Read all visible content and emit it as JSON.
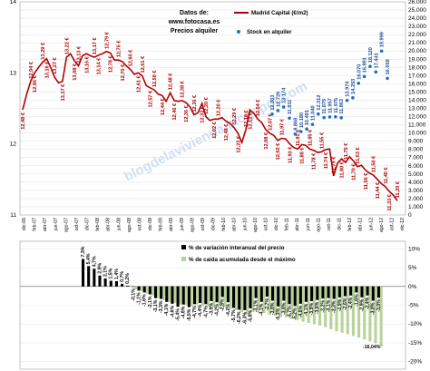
{
  "top_source": {
    "l1": "Datos de:",
    "l2": "www.fotocasa.es",
    "l3": "Precios alquiler"
  },
  "chart_data": [
    {
      "type": "line",
      "legend": [
        {
          "name": "Madrid Capital (€/m2)",
          "color": "#b00000"
        },
        {
          "name": "Stock en alquiler",
          "color": "#1f6fbf"
        }
      ],
      "categories": [
        "dic-06",
        "feb-07",
        "abr-07",
        "jun-07",
        "ago-07",
        "oct-07",
        "dic-07",
        "feb-08",
        "abr-08",
        "jun-08",
        "ago-08",
        "oct-08",
        "dic-08",
        "feb-09",
        "abr-09",
        "jun-09",
        "ago-09",
        "oct-09",
        "dic-09",
        "feb-10",
        "abr-10",
        "jun-10",
        "ago-10",
        "oct-10",
        "dic-10",
        "feb-11",
        "abr-11",
        "jun-11",
        "ago-11",
        "oct-11",
        "dic-11",
        "feb-12",
        "abr-12",
        "jun-12",
        "ago-12",
        "oct-12",
        "dic-12"
      ],
      "y_left": {
        "ticks": [
          "14",
          "13",
          "12",
          "11"
        ]
      },
      "y_right": {
        "ticks": [
          "26.000",
          "25.000",
          "24.000",
          "23.000",
          "22.000",
          "21.000",
          "20.000",
          "19.000",
          "18.000",
          "17.000",
          "16.000",
          "15.000",
          "14.000",
          "13.000",
          "12.000",
          "11.000",
          "10.000",
          "9.000",
          "8.000",
          "7.000",
          "6.000",
          "5.000",
          "4.000",
          "3.000",
          "2.000",
          "1.000",
          "0"
        ]
      },
      "price_values": [
        12.48,
        12.7,
        12.88,
        13.0,
        13.08,
        13.15,
        13.2,
        13.08,
        12.94,
        12.86,
        12.88,
        13.22,
        13.27,
        13.17,
        13.1,
        13.24,
        13.27,
        13.24,
        13.22,
        13.25,
        13.27,
        13.3,
        13.28,
        13.18,
        13.18,
        13.16,
        13.1,
        13.05,
        12.98,
        13.0,
        12.96,
        12.82,
        12.79,
        12.76,
        12.7,
        12.68,
        12.6,
        12.72,
        12.61,
        12.6,
        12.61,
        12.58,
        12.52,
        12.41,
        12.44,
        12.57,
        12.38,
        12.33,
        12.35,
        12.35,
        12.37,
        12.32,
        12.29,
        12.23,
        12.15,
        12.02,
        12.2,
        12.48,
        12.43,
        12.35,
        12.3,
        12.2,
        12.15,
        12.12,
        12.05,
        12.08,
        12.07,
        12.0,
        11.95,
        11.93,
        11.99,
        11.98,
        11.93,
        11.91,
        11.88,
        11.89,
        11.92,
        11.93,
        11.55,
        11.73,
        11.79,
        11.74,
        11.82,
        11.76,
        11.68,
        11.7,
        11.63,
        11.59,
        11.56,
        11.5,
        11.44,
        11.4,
        11.33,
        11.28,
        11.2
      ],
      "price_labels": [
        "12,48 €",
        "12,94 €",
        "12,96 €",
        "13,29 €",
        "13,16 €",
        "13,27 €",
        "13,17 €",
        "13,22 €",
        "13,08 €",
        "13,13 €",
        "13,16 €",
        "13,17 €",
        "13,14 €",
        "12,79 €",
        "12,78 €",
        "12,76 €",
        "12,70 €",
        "12,60 €",
        "12,61 €",
        "12,61 €",
        "12,57 €",
        "12,50 €",
        "12,44 €",
        "12,48 €",
        "12,46 €",
        "12,38 €",
        "12,36 €",
        "12,36 €",
        "12,33 €",
        "12,20 €",
        "12,02 €",
        "12,20 €",
        "12,48 €",
        "12,29 €",
        "12,23 €",
        "12,18 €",
        "12,12 €",
        "12,04 €",
        "12,08 €",
        "12,07 €",
        "12,02 €",
        "11,97 €",
        "11,93 €",
        "11,91 €",
        "11,88 €",
        "11,85 €",
        "11,78 €",
        "11,55 €",
        "11,74 €",
        "11,79 €",
        "11,80 €",
        "11,75 €",
        "11,70 €",
        "11,63 €",
        "11,56 €",
        "11,50 €",
        "11,44 €",
        "11,40 €",
        "11,33 €",
        "11,20 €"
      ],
      "stock_values": [
        12303,
        12729,
        13174,
        11811,
        9868,
        10180,
        10491,
        11040,
        12312,
        11875,
        11957,
        11975,
        11863,
        13974,
        14293,
        16070,
        16891,
        18120,
        17441,
        19999,
        16659
      ],
      "stock_labels": [
        "12.303",
        "12.729",
        "13.174",
        "11.811",
        "9.868",
        "10.180",
        "10.491",
        "11.040",
        "12.312",
        "11.875",
        "11.957",
        "11.975",
        "11.863",
        "13.974",
        "14.293",
        "16.070",
        "16.891",
        "18.120",
        "17.441",
        "19.999",
        "16.659"
      ],
      "watermark": "blogdelavivienda.blogspot.com"
    },
    {
      "type": "bar",
      "legend": [
        {
          "name": "% de variación interanual del precio",
          "color": "#000000"
        },
        {
          "name": "% de caida acumulada desde el máximo",
          "color": "#b8d39a"
        }
      ],
      "y_ticks": [
        "10%",
        "5%",
        "0%",
        "-5%",
        "-10%",
        "-15%",
        "-20%"
      ],
      "yoy_values": [
        7.3,
        5.4,
        4.7,
        2.9,
        2.1,
        1.5,
        1.4,
        0.7,
        0.2,
        -0.1,
        -1.1,
        -1.6,
        -2.1,
        -3.1,
        -3.3,
        -4.1,
        -4.6,
        -5.4,
        -4.8,
        -5.5,
        -4.7,
        -4.4,
        -4.7,
        -3.9,
        -4.2,
        -2.8,
        -4.2,
        -5.7,
        -6.2,
        -6.3,
        -5.8,
        -3.1,
        -4.1,
        -2.7,
        -3.8,
        -5.3,
        -3.8,
        -4.7,
        -5.2,
        -4.6,
        -4.1,
        -3.9,
        -3.6,
        -3.2,
        -3.1,
        -3.3,
        -2.9,
        -2.6,
        -2.4,
        -1.6,
        -2.9,
        -2.4,
        -3.8,
        -3.0
      ],
      "cum_values": [
        0,
        0,
        0,
        0,
        0,
        0,
        0,
        0,
        0,
        -0.8,
        -1.2,
        -1.9,
        -2.4,
        -3.1,
        -3.6,
        -4.2,
        -4.4,
        -4.8,
        -5.0,
        -5.3,
        -4.8,
        -5.2,
        -5.3,
        -5.6,
        -5.9,
        -5.5,
        -6.0,
        -6.3,
        -6.8,
        -7.4,
        -6.8,
        -6.9,
        -7.1,
        -7.6,
        -7.8,
        -8.1,
        -8.2,
        -8.6,
        -9.0,
        -9.4,
        -9.7,
        -10.1,
        -10.4,
        -10.8,
        -11.4,
        -11.9,
        -12.3,
        -12.7,
        -13.2,
        -13.6,
        -14.1,
        -14.6,
        -15.1,
        -16.04
      ],
      "bar_labels": [
        "7,3%",
        "5,4%",
        "4,7%",
        "2,9%",
        "2,1%",
        "1,5%",
        "1,4%",
        "0,7%",
        "0,2%",
        "-0,1%",
        "-1,1%",
        "-1,6%",
        "-2,1%",
        "-3,1%",
        "-3,3%",
        "-4,1%",
        "-4,6%",
        "-5,4%",
        "-4,8%",
        "-5,5%",
        "-4,7%",
        "-4,4%",
        "-4,7%",
        "-3,9%",
        "-4,2%",
        "-2,8%",
        "-4,2%",
        "-5,7%",
        "-6,2%",
        "-6,3%",
        "-5,8%",
        "-3,1%",
        "-4,1%",
        "-2,7%",
        "-3,8%",
        "-5,3%",
        "-3,8%",
        "-4,7%",
        "-5,2%",
        "-4,6%",
        "-4,1%",
        "-3,9%",
        "-3,6%",
        "-3,2%",
        "-3,1%",
        "-3,3%",
        "-2,9%",
        "-2,6%",
        "-2,4%",
        "-1,6%",
        "-2,9%",
        "-2,4%",
        "-3,8%",
        "-3,0%"
      ],
      "min_label": "-16,04%"
    }
  ]
}
